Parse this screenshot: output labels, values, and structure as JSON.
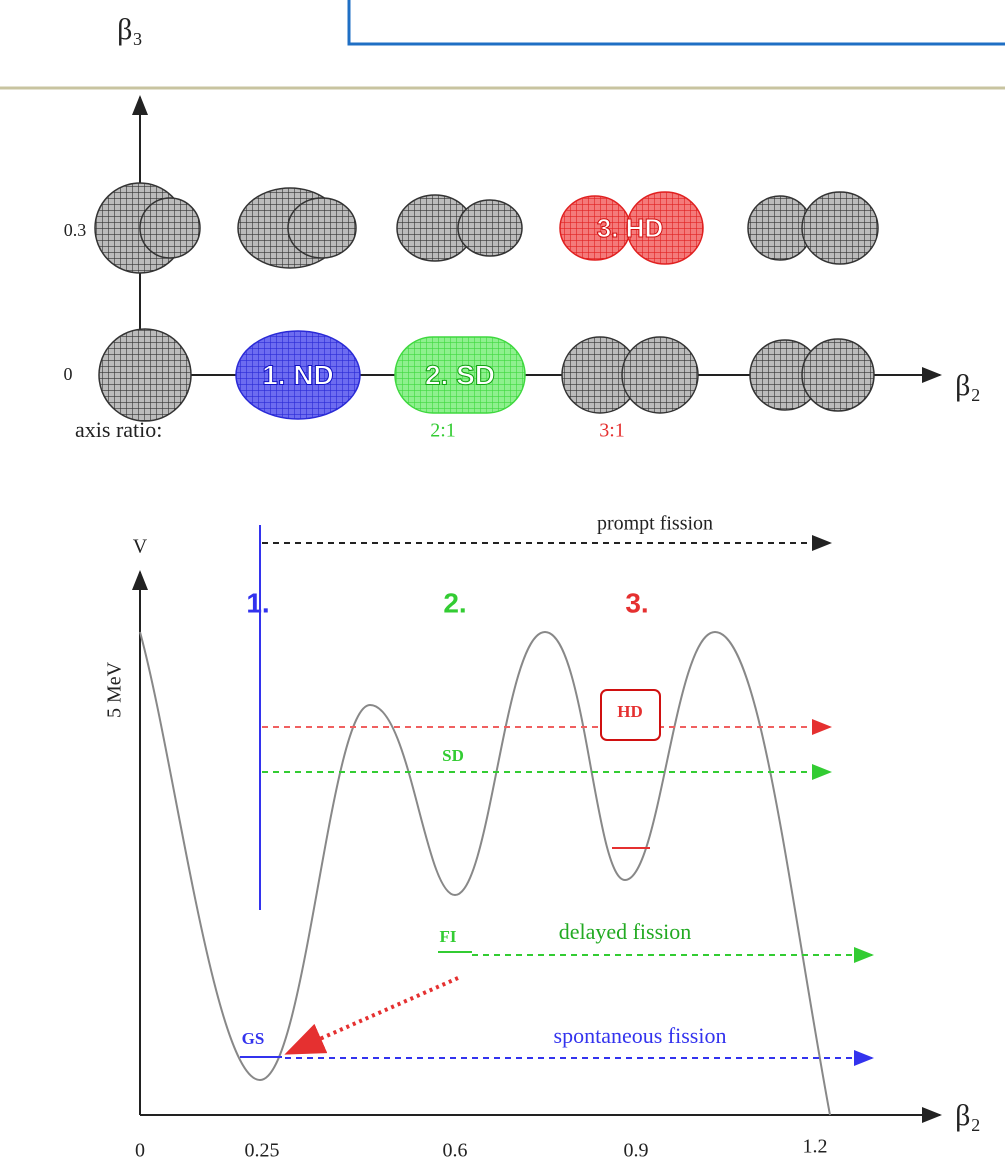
{
  "header": {
    "beta3": "β₃"
  },
  "upper": {
    "yticks": [
      "0.3",
      "0"
    ],
    "x_axis_label": "β₂",
    "shapes": {
      "nd": "1. ND",
      "sd": "2. SD",
      "hd": "3. HD"
    },
    "axis_ratio": {
      "label": "axis ratio:",
      "sd": "2:1",
      "hd": "3:1"
    }
  },
  "lower": {
    "y_axis_label": "V",
    "energy_label": "5 MeV",
    "x_axis_label": "β₂",
    "xticks": [
      "0",
      "0.25",
      "0.6",
      "0.9",
      "1.2"
    ],
    "well_numbers": [
      "1.",
      "2.",
      "3."
    ],
    "prompt_fission": "prompt fission",
    "hd": "HD",
    "sd": "SD",
    "fi": "FI",
    "delayed_fission": "delayed fission",
    "gs": "GS",
    "spontaneous_fission": "spontaneous fission"
  }
}
